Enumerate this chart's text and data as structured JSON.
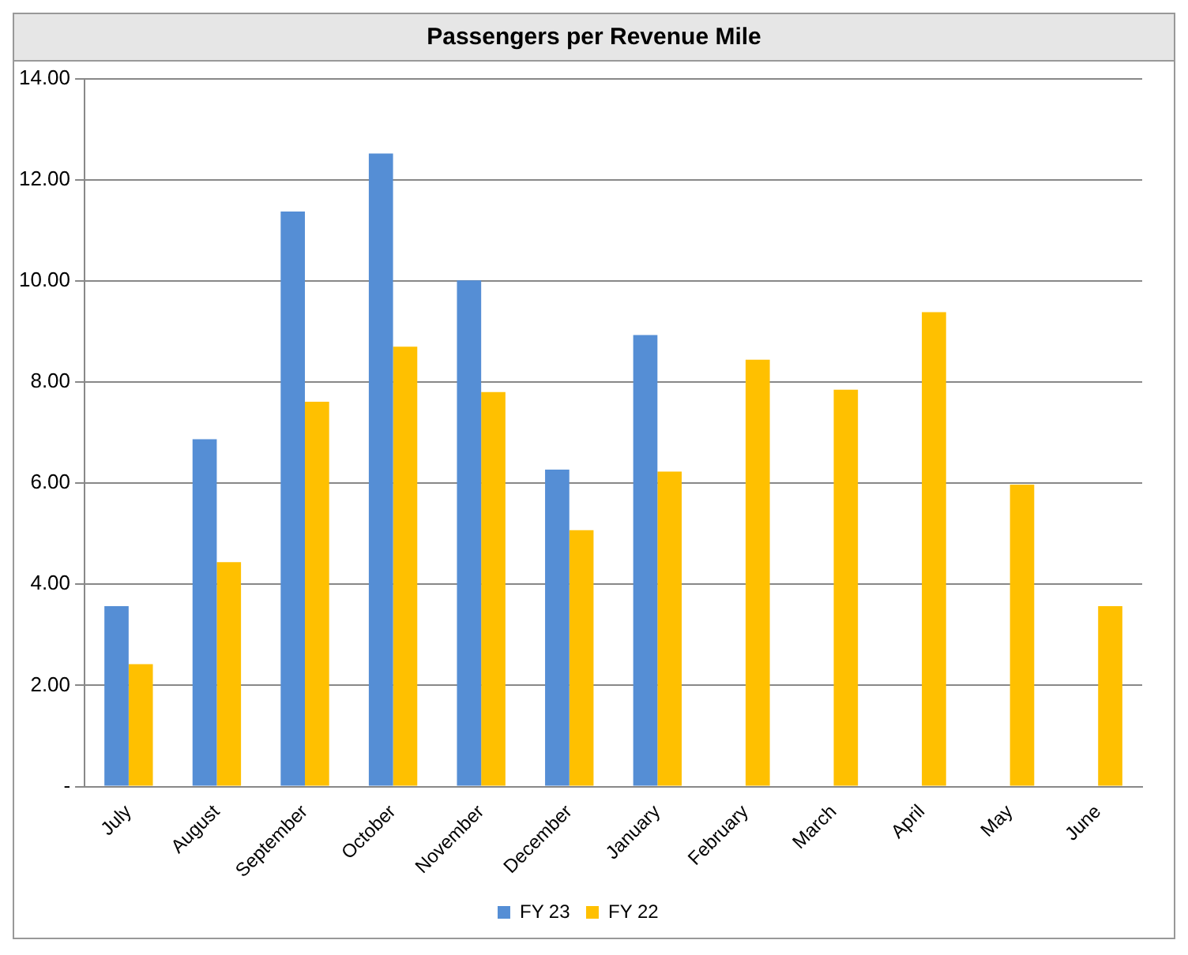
{
  "chart_data": {
    "type": "bar",
    "title": "Passengers per Revenue Mile",
    "categories": [
      "July",
      "August",
      "September",
      "October",
      "November",
      "December",
      "January",
      "February",
      "March",
      "April",
      "May",
      "June"
    ],
    "series": [
      {
        "name": "FY 23",
        "color": "#558ed5",
        "values": [
          3.57,
          6.87,
          11.37,
          12.52,
          10.01,
          6.27,
          8.93,
          null,
          null,
          null,
          null,
          null
        ]
      },
      {
        "name": "FY 22",
        "color": "#ffc000",
        "values": [
          2.42,
          4.44,
          7.61,
          8.7,
          7.8,
          5.07,
          6.23,
          8.44,
          7.85,
          9.38,
          5.97,
          3.57
        ]
      }
    ],
    "ylim": [
      0,
      14
    ],
    "yticks": [
      {
        "value": 0,
        "label": "-"
      },
      {
        "value": 2,
        "label": "2.00"
      },
      {
        "value": 4,
        "label": "4.00"
      },
      {
        "value": 6,
        "label": "6.00"
      },
      {
        "value": 8,
        "label": "8.00"
      },
      {
        "value": 10,
        "label": "10.00"
      },
      {
        "value": 12,
        "label": "12.00"
      },
      {
        "value": 14,
        "label": "14.00"
      }
    ],
    "grid": "y",
    "legend": "bottom"
  }
}
